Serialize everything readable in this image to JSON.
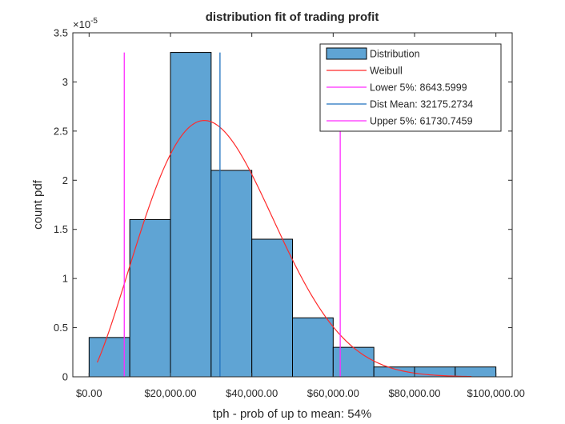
{
  "chart_data": {
    "type": "histogram",
    "title": "distribution fit of trading profit",
    "xlabel": "tph - prob of up to mean: 54%",
    "ylabel": "count pdf",
    "exponent_label": "×10",
    "exponent_power": "-5",
    "xlim": [
      -4000,
      104000
    ],
    "ylim": [
      0,
      3.5
    ],
    "x_ticks": [
      0,
      20000,
      40000,
      60000,
      80000,
      100000
    ],
    "x_tick_labels": [
      "$0.00",
      "$20,000.00",
      "$40,000.00",
      "$60,000.00",
      "$80,000.00",
      "$100,000.00"
    ],
    "y_ticks": [
      0,
      0.5,
      1,
      1.5,
      2,
      2.5,
      3,
      3.5
    ],
    "y_tick_labels": [
      "0",
      "0.5",
      "1",
      "1.5",
      "2",
      "2.5",
      "3",
      "3.5"
    ],
    "bins": [
      {
        "x0": 0,
        "x1": 10000,
        "value": 0.4
      },
      {
        "x0": 10000,
        "x1": 20000,
        "value": 1.6
      },
      {
        "x0": 20000,
        "x1": 30000,
        "value": 3.3
      },
      {
        "x0": 30000,
        "x1": 40000,
        "value": 2.1
      },
      {
        "x0": 40000,
        "x1": 50000,
        "value": 1.4
      },
      {
        "x0": 50000,
        "x1": 60000,
        "value": 0.6
      },
      {
        "x0": 60000,
        "x1": 70000,
        "value": 0.3
      },
      {
        "x0": 70000,
        "x1": 80000,
        "value": 0.1
      },
      {
        "x0": 80000,
        "x1": 90000,
        "value": 0.1
      },
      {
        "x0": 90000,
        "x1": 100000,
        "value": 0.1
      }
    ],
    "weibull": {
      "scale": 36300,
      "shape": 2.3,
      "x_start": 2000,
      "x_end": 94000,
      "color": "#ff2b2b"
    },
    "vlines": [
      {
        "name": "lower",
        "x": 8643.5999,
        "color": "#ff2bff"
      },
      {
        "name": "mean",
        "x": 32175.2734,
        "color": "#1f6fbf"
      },
      {
        "name": "upper",
        "x": 61730.7459,
        "color": "#ff2bff"
      }
    ],
    "vline_top": 3.3,
    "bar_color": "#5fa4d4",
    "legend_position": "top-right",
    "legend": [
      {
        "label": "Distribution",
        "kind": "patch",
        "color": "#5fa4d4"
      },
      {
        "label": "Weibull",
        "kind": "line",
        "color": "#ff2b2b"
      },
      {
        "label": "Lower 5%: 8643.5999",
        "kind": "line",
        "color": "#ff2bff"
      },
      {
        "label": "Dist Mean: 32175.2734",
        "kind": "line",
        "color": "#1f6fbf"
      },
      {
        "label": "Upper 5%: 61730.7459",
        "kind": "line",
        "color": "#ff2bff"
      }
    ]
  }
}
